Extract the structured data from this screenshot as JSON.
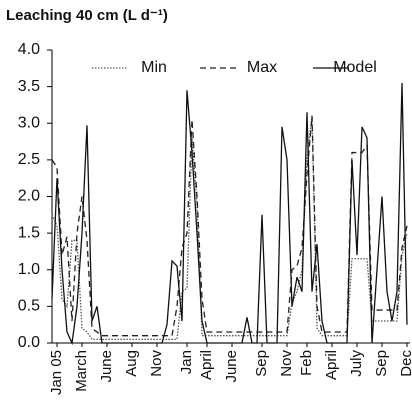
{
  "chart_data": {
    "type": "line",
    "title": "Leaching 40 cm (L d⁻¹)",
    "categories": [
      null,
      "Jan 05",
      null,
      null,
      null,
      null,
      "March",
      null,
      null,
      null,
      null,
      "June",
      null,
      null,
      null,
      null,
      "Aug",
      null,
      null,
      null,
      null,
      "Nov",
      null,
      null,
      null,
      null,
      null,
      "Jan",
      null,
      null,
      null,
      "April",
      null,
      null,
      null,
      null,
      "June",
      null,
      null,
      null,
      null,
      null,
      "Sep",
      null,
      null,
      null,
      null,
      "Nov",
      null,
      null,
      null,
      "Feb",
      null,
      null,
      null,
      null,
      "April",
      null,
      null,
      null,
      null,
      "July",
      null,
      null,
      null,
      null,
      "Sep",
      null,
      null,
      null,
      null,
      "Dec"
    ],
    "series": [
      {
        "name": "Min",
        "color": "#555555",
        "dash": "1.5,1.5",
        "values": [
          1.75,
          1.6,
          0.6,
          0.5,
          1.4,
          1.4,
          0.2,
          0.15,
          0.05,
          0.05,
          0.05,
          0.05,
          0.05,
          0.05,
          0.05,
          0.05,
          0.05,
          0.05,
          0.05,
          0.05,
          0.05,
          0.05,
          0.05,
          0.05,
          0.05,
          0.05,
          0.7,
          0.75,
          2.8,
          1.9,
          0.1,
          0.1,
          0.1,
          0.1,
          0.1,
          0.1,
          0.1,
          0.1,
          0.1,
          0.1,
          0.1,
          0.1,
          0.1,
          0.1,
          0.1,
          0.1,
          0.1,
          0.1,
          0.55,
          0.7,
          1.0,
          2.5,
          3.1,
          0.2,
          0.1,
          0.1,
          0.1,
          0.1,
          0.1,
          0.1,
          1.15,
          1.15,
          1.15,
          1.15,
          0.3,
          0.3,
          0.3,
          0.3,
          0.3,
          0.3,
          1.2,
          1.5
        ]
      },
      {
        "name": "Max",
        "color": "#222222",
        "dash": "6,4",
        "values": [
          2.5,
          2.4,
          1.2,
          1.45,
          0.3,
          1.5,
          2.0,
          1.4,
          0.2,
          0.15,
          0.1,
          0.1,
          0.1,
          0.1,
          0.1,
          0.1,
          0.1,
          0.1,
          0.1,
          0.1,
          0.1,
          0.1,
          0.1,
          0.1,
          0.1,
          0.5,
          1.3,
          1.5,
          3.05,
          2.0,
          0.6,
          0.15,
          0.15,
          0.15,
          0.15,
          0.15,
          0.15,
          0.15,
          0.15,
          0.15,
          0.15,
          0.15,
          0.15,
          0.15,
          0.15,
          0.15,
          0.15,
          0.15,
          1.0,
          1.05,
          1.3,
          2.3,
          3.1,
          0.5,
          0.15,
          0.15,
          0.15,
          0.15,
          0.15,
          0.15,
          2.6,
          2.6,
          2.6,
          2.7,
          0.45,
          0.45,
          0.45,
          0.45,
          0.45,
          0.45,
          1.3,
          1.6
        ]
      },
      {
        "name": "Model",
        "color": "#111111",
        "dash": "none",
        "values": [
          0.6,
          2.25,
          1.0,
          0.15,
          0,
          0.5,
          1.5,
          2.97,
          0.3,
          0.5,
          0,
          0,
          0,
          0,
          0,
          0,
          0,
          0,
          0,
          0,
          0,
          0,
          0,
          0.25,
          1.12,
          1.05,
          0.3,
          3.45,
          2.6,
          1.5,
          0.3,
          0,
          0,
          0,
          0,
          0,
          0,
          0,
          0,
          0.35,
          0,
          0,
          1.75,
          0,
          0,
          0,
          2.95,
          2.5,
          0.5,
          0.9,
          0.7,
          3.15,
          0.7,
          1.35,
          0.3,
          0,
          0,
          0,
          0,
          0,
          2.5,
          1.2,
          2.95,
          2.8,
          0,
          1.0,
          2.0,
          0.7,
          0.3,
          0.7,
          3.55,
          0.25
        ]
      }
    ],
    "ylim": [
      0,
      4
    ],
    "yticks": [
      {
        "value": 0,
        "label": "0.0"
      },
      {
        "value": 0.5,
        "label": "0.5"
      },
      {
        "value": 1,
        "label": "1.0"
      },
      {
        "value": 1.5,
        "label": "1.5"
      },
      {
        "value": 2,
        "label": "2.0"
      },
      {
        "value": 2.5,
        "label": "2.5"
      },
      {
        "value": 3,
        "label": "3.0"
      },
      {
        "value": 3.5,
        "label": "3.5"
      },
      {
        "value": 4,
        "label": "4.0"
      }
    ],
    "grid": false,
    "legend": "top"
  }
}
